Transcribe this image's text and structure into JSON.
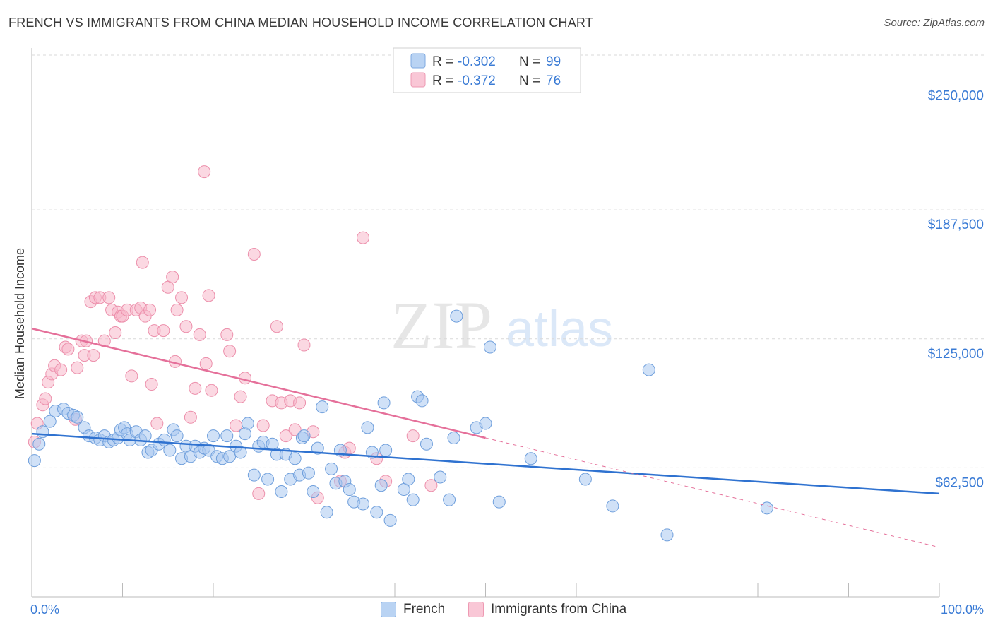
{
  "title": "FRENCH VS IMMIGRANTS FROM CHINA MEDIAN HOUSEHOLD INCOME CORRELATION CHART",
  "source": "Source: ZipAtlas.com",
  "watermark": {
    "zip": "ZIP",
    "atlas": "atlas"
  },
  "colors": {
    "french_fill": "#a9c8f0",
    "french_stroke": "#6f9fdc",
    "french_line": "#2f72d0",
    "china_fill": "#f7b8cb",
    "china_stroke": "#ec8fab",
    "china_line": "#e5709a",
    "axis_text": "#3a7bd5",
    "grid": "#d9d9d9"
  },
  "legend": {
    "rows": [
      {
        "r_label": "R =",
        "r_value": "-0.302",
        "n_label": "N =",
        "n_value": "99"
      },
      {
        "r_label": "R =",
        "r_value": "-0.372",
        "n_label": "N =",
        "n_value": "76"
      }
    ]
  },
  "chart_data": {
    "type": "scatter",
    "title": "FRENCH VS IMMIGRANTS FROM CHINA MEDIAN HOUSEHOLD INCOME CORRELATION CHART",
    "xlabel": "",
    "ylabel": "Median Household Income",
    "xlim": [
      0,
      100
    ],
    "ylim": [
      0,
      262500
    ],
    "x_tick_labels": [
      "0.0%",
      "100.0%"
    ],
    "y_ticks": [
      62500,
      125000,
      187500,
      250000
    ],
    "y_tick_labels": [
      "$62,500",
      "$125,000",
      "$187,500",
      "$250,000"
    ],
    "grid": "horizontal dashed",
    "legend_position": "top-center",
    "series": [
      {
        "name": "French",
        "r": -0.302,
        "n": 99,
        "trend": {
          "x": [
            0,
            100
          ],
          "y": [
            79000,
            50000
          ],
          "style": "solid"
        },
        "points": [
          [
            0.3,
            66000
          ],
          [
            0.8,
            74000
          ],
          [
            1.2,
            80000
          ],
          [
            2,
            85000
          ],
          [
            2.6,
            90000
          ],
          [
            3.5,
            91000
          ],
          [
            4,
            89000
          ],
          [
            4.6,
            88000
          ],
          [
            5,
            87000
          ],
          [
            5.8,
            82000
          ],
          [
            6.3,
            78000
          ],
          [
            7,
            77000
          ],
          [
            7.5,
            76000
          ],
          [
            8,
            78000
          ],
          [
            8.5,
            75000
          ],
          [
            9,
            76000
          ],
          [
            9.5,
            77000
          ],
          [
            9.8,
            81000
          ],
          [
            10.2,
            82000
          ],
          [
            10.5,
            79000
          ],
          [
            10.8,
            76000
          ],
          [
            11.5,
            80000
          ],
          [
            12,
            76000
          ],
          [
            12.5,
            78000
          ],
          [
            12.8,
            70000
          ],
          [
            13.2,
            71000
          ],
          [
            14,
            74000
          ],
          [
            14.6,
            76000
          ],
          [
            15.2,
            71000
          ],
          [
            15.6,
            81000
          ],
          [
            16,
            78000
          ],
          [
            16.5,
            67000
          ],
          [
            17,
            73000
          ],
          [
            17.5,
            68000
          ],
          [
            18,
            73000
          ],
          [
            18.5,
            70000
          ],
          [
            19,
            72000
          ],
          [
            19.5,
            71000
          ],
          [
            20,
            78000
          ],
          [
            20.4,
            68000
          ],
          [
            21,
            67000
          ],
          [
            21.5,
            78000
          ],
          [
            21.8,
            68000
          ],
          [
            22.5,
            73000
          ],
          [
            23,
            70000
          ],
          [
            23.5,
            79000
          ],
          [
            23.8,
            84000
          ],
          [
            24.5,
            59000
          ],
          [
            25,
            73000
          ],
          [
            25.5,
            75000
          ],
          [
            26,
            57000
          ],
          [
            26.5,
            74000
          ],
          [
            27,
            69000
          ],
          [
            27.5,
            51000
          ],
          [
            28,
            69000
          ],
          [
            28.5,
            57000
          ],
          [
            29,
            67000
          ],
          [
            29.5,
            59000
          ],
          [
            29.8,
            77000
          ],
          [
            30,
            78000
          ],
          [
            30.5,
            60000
          ],
          [
            31,
            51000
          ],
          [
            31.5,
            72000
          ],
          [
            32,
            92000
          ],
          [
            32.5,
            41000
          ],
          [
            33,
            62000
          ],
          [
            33.5,
            55000
          ],
          [
            34,
            71000
          ],
          [
            34.5,
            56000
          ],
          [
            35,
            52000
          ],
          [
            35.5,
            46000
          ],
          [
            36.5,
            45000
          ],
          [
            37,
            82000
          ],
          [
            37.5,
            70000
          ],
          [
            38,
            41000
          ],
          [
            38.5,
            54000
          ],
          [
            38.8,
            94000
          ],
          [
            39,
            71000
          ],
          [
            39.5,
            37000
          ],
          [
            41,
            52000
          ],
          [
            41.5,
            57000
          ],
          [
            42,
            47000
          ],
          [
            42.5,
            97000
          ],
          [
            43,
            95000
          ],
          [
            43.5,
            74000
          ],
          [
            45,
            58000
          ],
          [
            46,
            47000
          ],
          [
            46.5,
            77000
          ],
          [
            46.8,
            136000
          ],
          [
            49,
            82000
          ],
          [
            50,
            84000
          ],
          [
            50.5,
            121000
          ],
          [
            51.5,
            46000
          ],
          [
            55,
            67000
          ],
          [
            61,
            57000
          ],
          [
            64,
            44000
          ],
          [
            68,
            110000
          ],
          [
            70,
            30000
          ],
          [
            81,
            43000
          ]
        ]
      },
      {
        "name": "Immigrants from China",
        "r": -0.372,
        "n": 76,
        "trend": {
          "x": [
            0,
            50
          ],
          "y": [
            130000,
            77000
          ],
          "x_dashed": [
            50,
            100
          ],
          "y_dashed": [
            77000,
            24000
          ],
          "style": "solid then dashed"
        },
        "points": [
          [
            0.3,
            75000
          ],
          [
            0.6,
            84000
          ],
          [
            1.2,
            93000
          ],
          [
            1.5,
            96000
          ],
          [
            1.8,
            104000
          ],
          [
            2.2,
            108000
          ],
          [
            2.5,
            112000
          ],
          [
            3.2,
            110000
          ],
          [
            3.7,
            121000
          ],
          [
            4,
            120000
          ],
          [
            4.8,
            86000
          ],
          [
            5,
            111000
          ],
          [
            5.5,
            124000
          ],
          [
            5.8,
            117000
          ],
          [
            6,
            124000
          ],
          [
            6.5,
            143000
          ],
          [
            6.8,
            117000
          ],
          [
            7,
            145000
          ],
          [
            7.5,
            145000
          ],
          [
            8,
            124000
          ],
          [
            8.5,
            145000
          ],
          [
            8.8,
            139000
          ],
          [
            9.2,
            128000
          ],
          [
            9.5,
            138000
          ],
          [
            9.8,
            136000
          ],
          [
            10,
            136000
          ],
          [
            10.5,
            139000
          ],
          [
            11,
            107000
          ],
          [
            11.5,
            139000
          ],
          [
            12,
            140000
          ],
          [
            12.2,
            162000
          ],
          [
            12.5,
            136000
          ],
          [
            13,
            139000
          ],
          [
            13.2,
            103000
          ],
          [
            13.5,
            129000
          ],
          [
            13.8,
            84000
          ],
          [
            14.5,
            129000
          ],
          [
            15,
            150000
          ],
          [
            15.5,
            155000
          ],
          [
            15.8,
            114000
          ],
          [
            16,
            139000
          ],
          [
            16.5,
            145000
          ],
          [
            17,
            131000
          ],
          [
            17.5,
            87000
          ],
          [
            18,
            101000
          ],
          [
            18.5,
            127000
          ],
          [
            19,
            206000
          ],
          [
            19.2,
            113000
          ],
          [
            19.5,
            146000
          ],
          [
            19.8,
            100000
          ],
          [
            21.5,
            127000
          ],
          [
            21.8,
            119000
          ],
          [
            22.5,
            83000
          ],
          [
            23,
            97000
          ],
          [
            23.5,
            106000
          ],
          [
            24.5,
            166000
          ],
          [
            25,
            50000
          ],
          [
            25.5,
            83000
          ],
          [
            26.5,
            95000
          ],
          [
            27,
            131000
          ],
          [
            27.5,
            94000
          ],
          [
            28,
            78000
          ],
          [
            28.5,
            95000
          ],
          [
            29,
            81000
          ],
          [
            29.5,
            94000
          ],
          [
            30,
            122000
          ],
          [
            31,
            80000
          ],
          [
            31.5,
            48000
          ],
          [
            34,
            56000
          ],
          [
            34.5,
            70000
          ],
          [
            35,
            72000
          ],
          [
            36.5,
            174000
          ],
          [
            38,
            67000
          ],
          [
            39,
            56000
          ],
          [
            42,
            78000
          ],
          [
            44,
            54000
          ]
        ]
      }
    ]
  }
}
